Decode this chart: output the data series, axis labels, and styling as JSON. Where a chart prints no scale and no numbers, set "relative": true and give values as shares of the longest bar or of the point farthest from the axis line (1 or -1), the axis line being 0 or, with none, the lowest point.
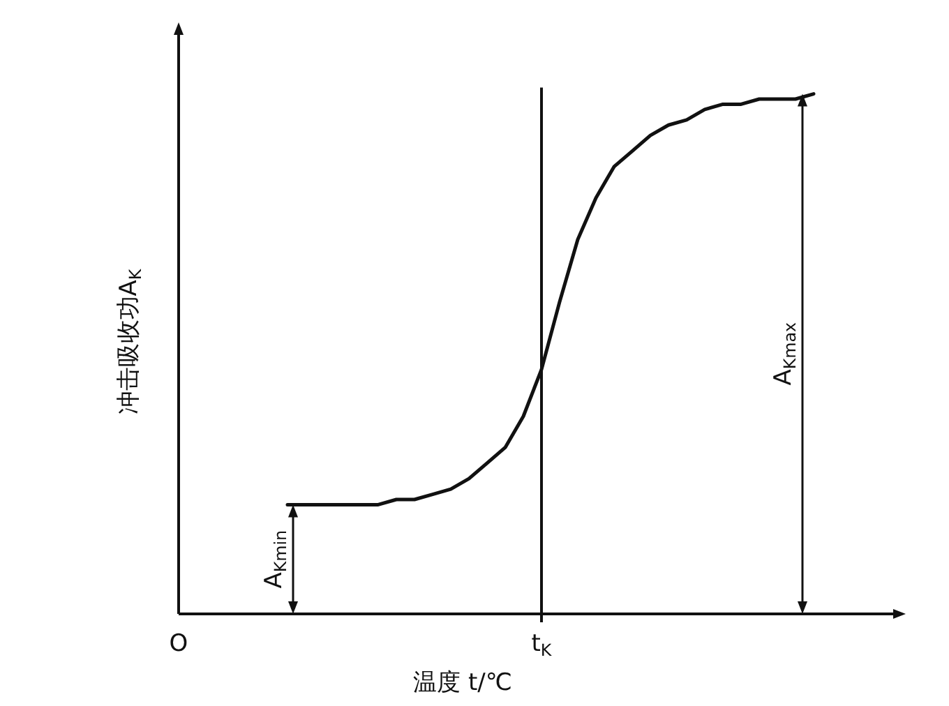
{
  "chart_data": {
    "type": "line",
    "relative": true,
    "xlabel": "温度 t/℃",
    "ylabel": "冲击吸收功A$_{K}$",
    "categories": [
      "O",
      null,
      null,
      null,
      null,
      null,
      null,
      null,
      null,
      null,
      null,
      null,
      null,
      null,
      null,
      null,
      null,
      null,
      null,
      null,
      "t$_{K}$",
      null,
      null,
      null,
      null,
      null,
      null,
      null,
      null,
      null,
      null,
      null,
      null,
      null,
      null,
      null,
      null,
      null,
      null,
      null
    ],
    "series": [
      {
        "color": "#111111",
        "values": [
          null,
          null,
          null,
          null,
          null,
          null,
          0.21,
          0.21,
          0.21,
          0.21,
          0.21,
          0.21,
          0.22,
          0.22,
          0.23,
          0.24,
          0.26,
          0.29,
          0.32,
          0.38,
          0.47,
          0.6,
          0.72,
          0.8,
          0.86,
          0.89,
          0.92,
          0.94,
          0.95,
          0.97,
          0.98,
          0.98,
          0.99,
          0.99,
          0.99,
          1,
          null,
          null,
          null,
          null
        ]
      }
    ],
    "ref_lines": [
      {
        "axis": "x",
        "value": "t$_{K}$",
        "color": "#111111"
      }
    ],
    "annotations": [
      "A$_{Kmin}$",
      "A$_{Kmax}$"
    ],
    "marker": "none",
    "line_style": "solid",
    "grid": false,
    "legend": false
  }
}
